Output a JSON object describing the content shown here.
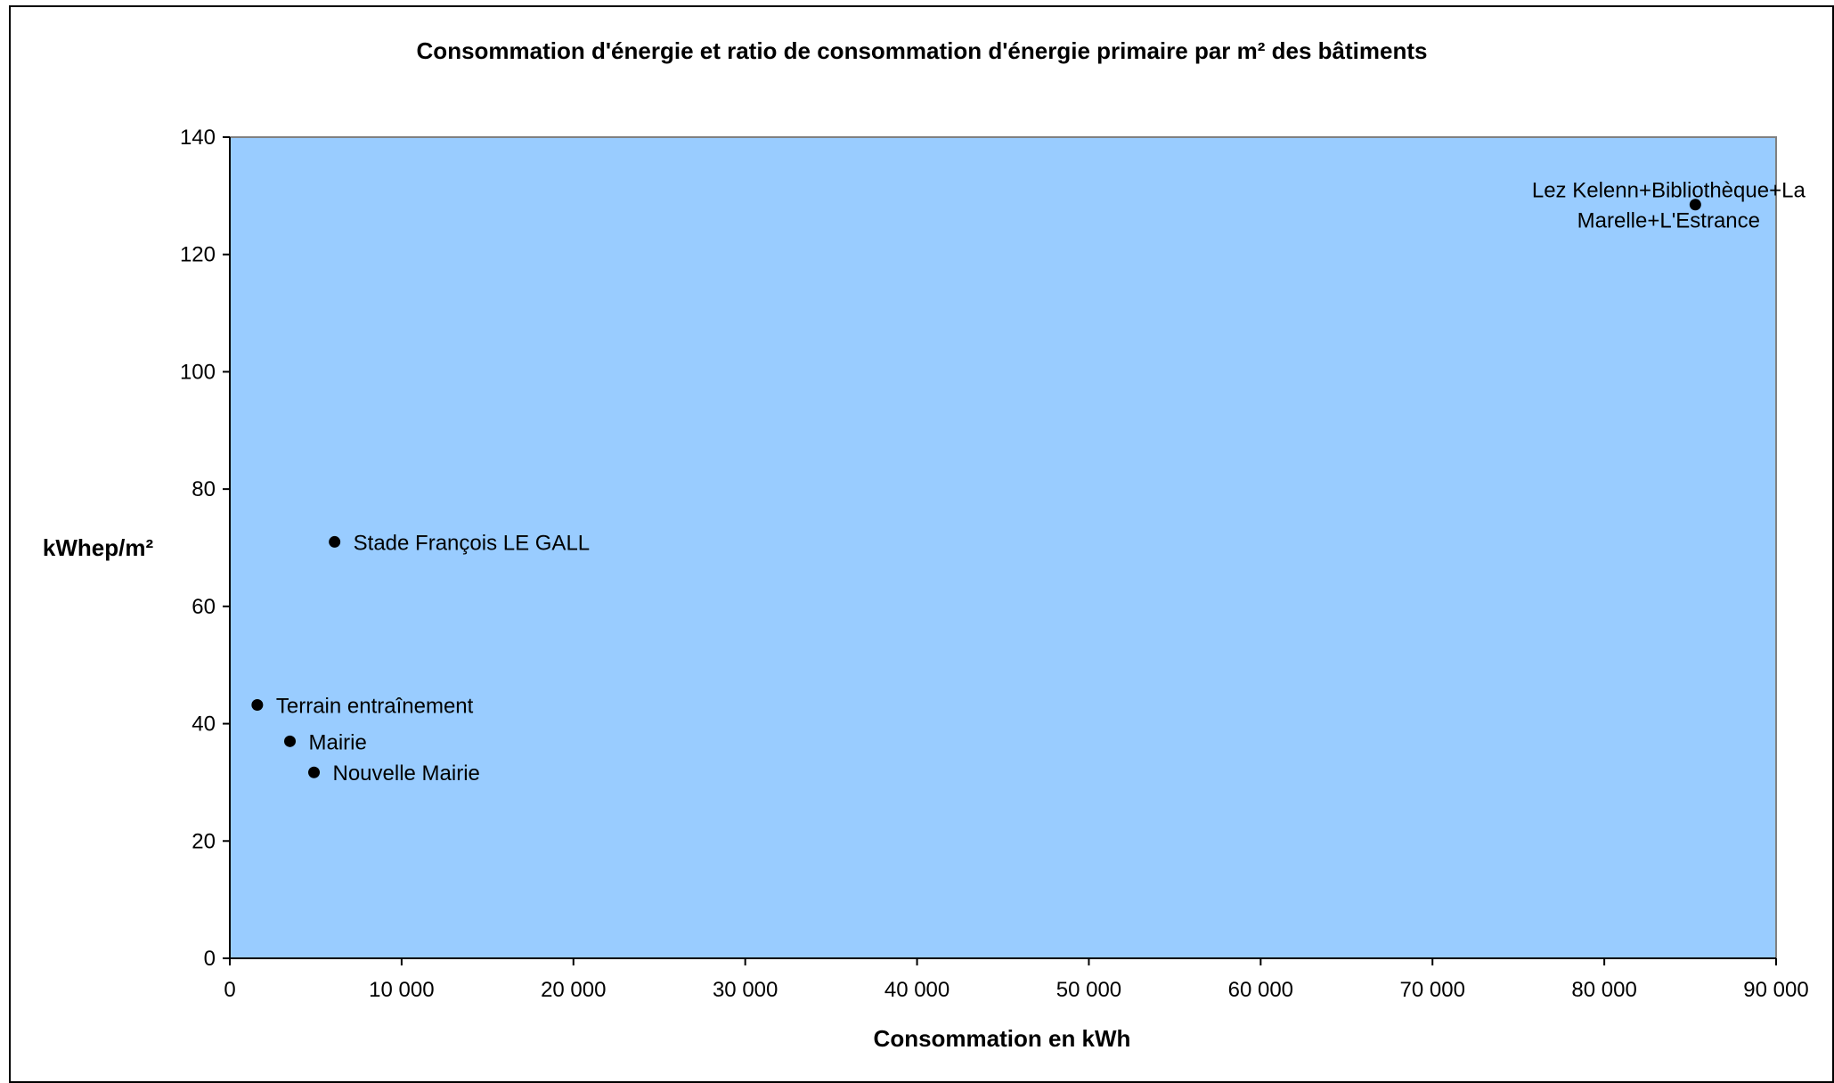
{
  "colors": {
    "plot_background": "#99ccff",
    "marker": "#000000",
    "axis": "#000000"
  },
  "chart_data": {
    "type": "scatter",
    "title": "Consommation d'énergie et ratio de consommation d'énergie primaire par m² des bâtiments",
    "xlabel": "Consommation en kWh",
    "ylabel": "kWhep/m²",
    "xlim": [
      0,
      90000
    ],
    "ylim": [
      0,
      140
    ],
    "x_ticks": [
      0,
      10000,
      20000,
      30000,
      40000,
      50000,
      60000,
      70000,
      80000,
      90000
    ],
    "x_tick_labels": [
      "0",
      "10 000",
      "20 000",
      "30 000",
      "40 000",
      "50 000",
      "60 000",
      "70 000",
      "80 000",
      "90 000"
    ],
    "y_ticks": [
      0,
      20,
      40,
      60,
      80,
      100,
      120,
      140
    ],
    "y_tick_labels": [
      "0",
      "20",
      "40",
      "60",
      "80",
      "100",
      "120",
      "140"
    ],
    "grid": false,
    "legend": "none",
    "points": [
      {
        "label": "Lez Kelenn+Bibliothèque+La Marelle+L'Estrance",
        "x": 85300,
        "y": 128.5
      },
      {
        "label": "Stade François LE GALL",
        "x": 6100,
        "y": 71
      },
      {
        "label": "Terrain entraînement",
        "x": 1600,
        "y": 43.2
      },
      {
        "label": "Mairie",
        "x": 3500,
        "y": 37
      },
      {
        "label": "Nouvelle Mairie",
        "x": 4900,
        "y": 31.7
      }
    ]
  }
}
